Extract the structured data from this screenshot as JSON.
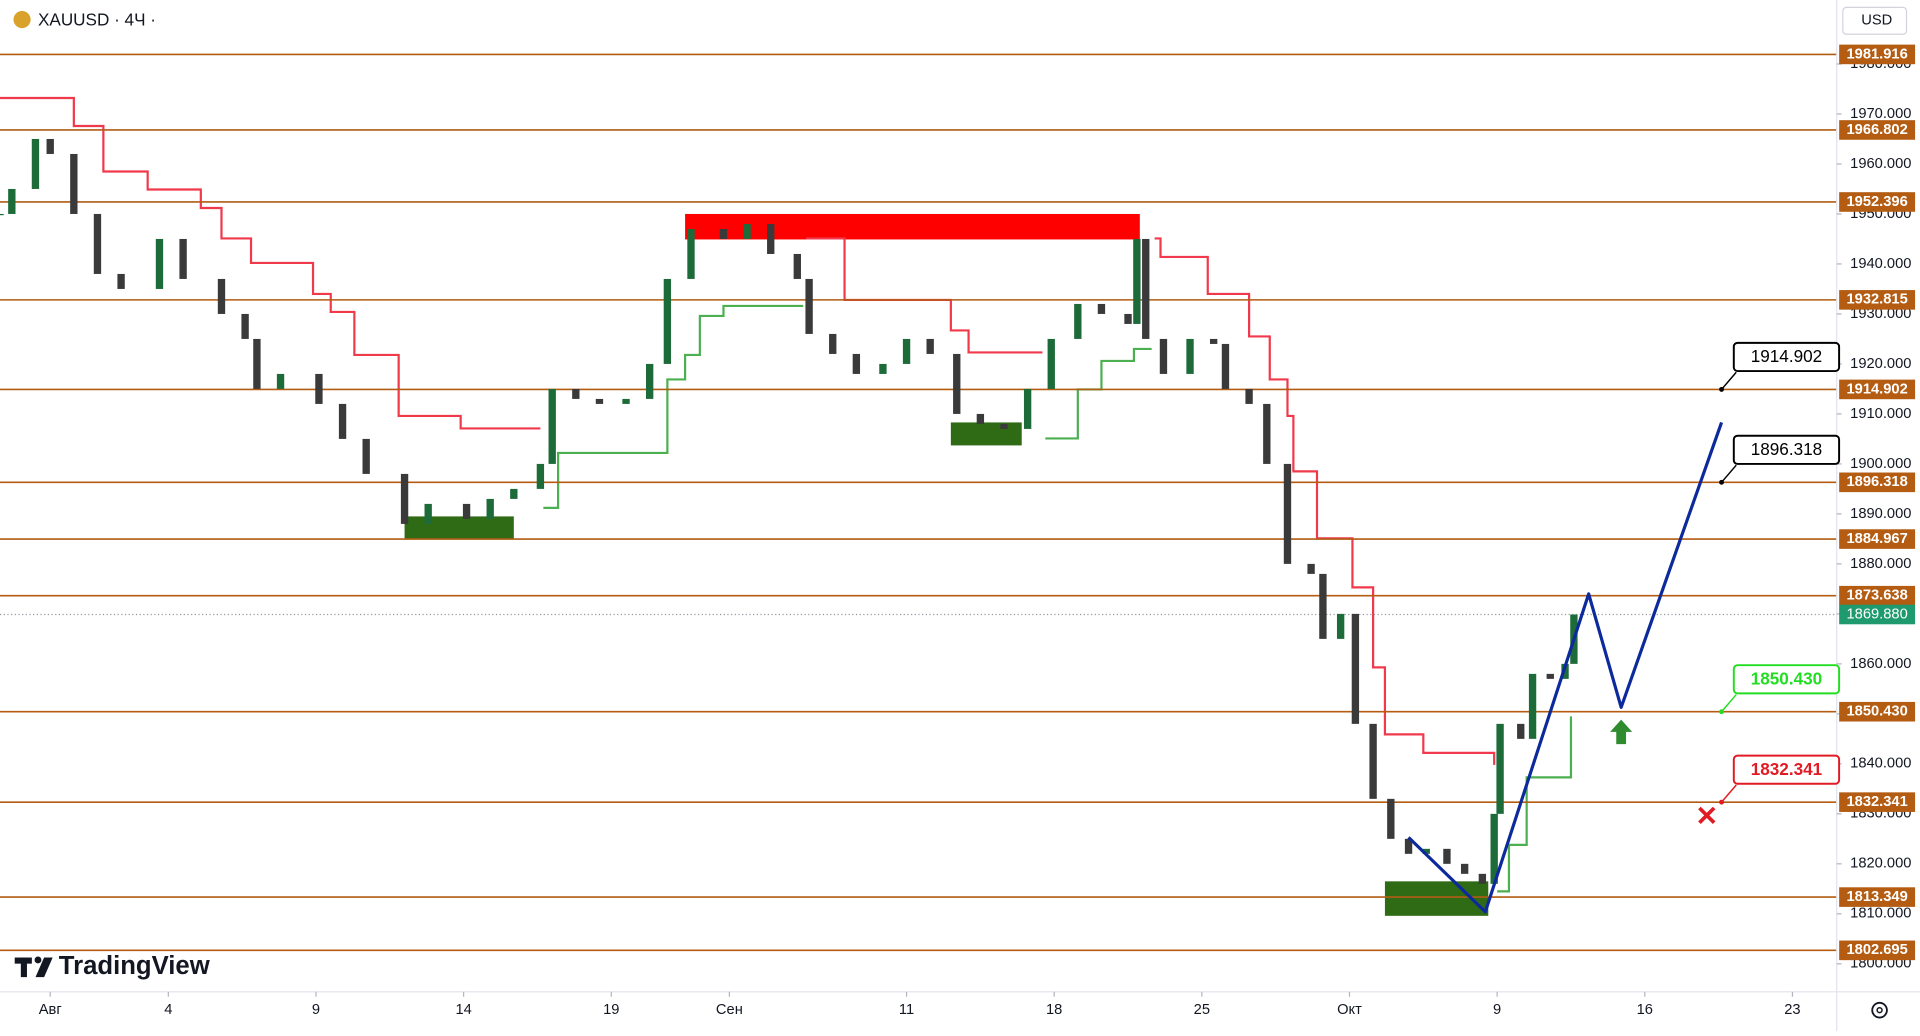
{
  "header": {
    "symbol": "XAUUSD · 4Ч ·",
    "currency": "USD",
    "brand": "TradingView"
  },
  "chart_data": {
    "type": "candlestick",
    "x": [
      -1.7,
      -1.3,
      -0.5,
      0,
      0.8,
      1.6,
      2.4,
      3.7,
      4.5,
      5.8,
      6.6,
      7,
      7.8,
      9.1,
      9.9,
      10.7,
      12,
      12.8,
      14.1,
      14.9,
      15.7,
      16.6,
      17,
      17.8,
      18.6,
      19.5,
      20.3,
      20.9,
      21.7,
      22.8,
      23.6,
      24.4,
      25.3,
      25.7,
      26.5,
      27.3,
      28.2,
      29,
      29.8,
      30.7,
      31.5,
      32.3,
      33.1,
      33.9,
      34.8,
      35.6,
      36.5,
      36.8,
      37.1,
      37.7,
      38.6,
      39.4,
      39.8,
      40.6,
      41.2,
      41.9,
      42.7,
      43.1,
      43.7,
      44.2,
      44.8,
      45.4,
      46,
      46.6,
      47.3,
      47.9,
      48.5,
      48.9,
      49.1,
      49.8,
      50.2,
      50.8,
      51.3,
      51.6
    ],
    "values": [
      1950,
      1955,
      1965,
      1962,
      1950,
      1938,
      1935,
      1945,
      1937,
      1930,
      1925,
      1915,
      1918,
      1912,
      1905,
      1898,
      1888,
      1892,
      1889,
      1893,
      1895,
      1900,
      1915,
      1913,
      1912,
      1913,
      1920,
      1937,
      1947,
      1945,
      1948,
      1942,
      1937,
      1926,
      1922,
      1918,
      1920,
      1925,
      1922,
      1910,
      1908,
      1907,
      1915,
      1925,
      1932,
      1930,
      1928,
      1945,
      1925,
      1918,
      1925,
      1924,
      1915,
      1912,
      1900,
      1880,
      1878,
      1865,
      1870,
      1848,
      1833,
      1825,
      1822,
      1823,
      1820,
      1818,
      1816,
      1830,
      1848,
      1845,
      1858,
      1857,
      1860,
      1869.88
    ],
    "up_color": "#1e6b3a",
    "down_color": "#3a3a3a",
    "xlim": [
      -1.7,
      60.5
    ],
    "xticks": [
      {
        "value": 0,
        "label": "Авг"
      },
      4,
      9,
      14,
      19,
      {
        "value": 23,
        "label": "Сен"
      },
      {
        "value": 29,
        "label": "11"
      },
      {
        "value": 34,
        "label": "18"
      },
      {
        "value": 39,
        "label": "25"
      },
      {
        "value": 44,
        "label": "Окт"
      },
      {
        "value": 49,
        "label": "9"
      },
      {
        "value": 54,
        "label": "16"
      },
      {
        "value": 59,
        "label": "23"
      }
    ],
    "ylim": [
      1794.4,
      1992.8
    ],
    "yticks": [
      {
        "value": 1800,
        "label": "1800.000"
      },
      {
        "value": 1810,
        "label": "1810.000"
      },
      {
        "value": 1820,
        "label": "1820.000"
      },
      {
        "value": 1830,
        "label": "1830.000"
      },
      {
        "value": 1840,
        "label": "1840.000"
      },
      {
        "value": 1850,
        "label": "1850.000"
      },
      {
        "value": 1860,
        "label": "1860.000"
      },
      {
        "value": 1870,
        "label": "1870.000"
      },
      {
        "value": 1880,
        "label": "1880.000"
      },
      {
        "value": 1890,
        "label": "1890.000"
      },
      {
        "value": 1900,
        "label": "1900.000"
      },
      {
        "value": 1910,
        "label": "1910.000"
      },
      {
        "value": 1920,
        "label": "1920.000"
      },
      {
        "value": 1930,
        "label": "1930.000"
      },
      {
        "value": 1940,
        "label": "1940.000"
      },
      {
        "value": 1950,
        "label": "1950.000"
      },
      {
        "value": 1960,
        "label": "1960.000"
      },
      {
        "value": 1970,
        "label": "1970.000"
      },
      {
        "value": 1980,
        "label": "1980.000"
      }
    ],
    "levels": [
      1981.916,
      1966.802,
      1952.396,
      1932.815,
      1914.902,
      1896.318,
      1884.967,
      1873.638,
      {
        "value": 1850.43,
        "label": "1850.430"
      },
      1832.341,
      1813.349,
      1802.695
    ],
    "level_color": "#b35c12",
    "current_price": {
      "value": 1869.88,
      "label": "1869.880"
    },
    "current_color": "#1f9a6f",
    "callouts": [
      {
        "price": 1914.902,
        "color": "#000000"
      },
      {
        "price": 1896.318,
        "color": "#000000"
      },
      {
        "price": {
          "value": 1850.43,
          "label": "1850.430"
        },
        "color": "#22dd22"
      },
      {
        "price": 1832.341,
        "color": "#e01b24"
      }
    ],
    "callout_x": 56.6,
    "zones": [
      {
        "x": [
          12.0,
          15.7
        ],
        "y": [
          1884.9,
          1889.5
        ],
        "color": "#2f6b15"
      },
      {
        "x": [
          30.5,
          32.9
        ],
        "y": [
          1903.7,
          1908.3
        ],
        "color": "#2f6b15"
      },
      {
        "x": [
          45.2,
          48.7
        ],
        "y": [
          1809.6,
          1816.5
        ],
        "color": "#2f6b15"
      },
      {
        "x": [
          21.5,
          36.9
        ],
        "y": [
          1944.9,
          1950.0
        ],
        "color": "#ff0000"
      }
    ],
    "supertrend": [
      {
        "color": "#f0394b",
        "x": [
          -1.7,
          0.8,
          1.8,
          3.3,
          5.1,
          5.8,
          6.8,
          8.9,
          9.5,
          10.3,
          11.8,
          13.9,
          16.6
        ],
        "values": [
          1973.2,
          1967.6,
          1958.5,
          1954.9,
          1951.2,
          1945.1,
          1940.2,
          1934.0,
          1930.4,
          1921.8,
          1909.6,
          1907.1,
          1907.1
        ]
      },
      {
        "color": "#4caf50",
        "x": [
          16.7,
          17.2,
          20.1,
          20.9,
          21.5,
          22.0,
          22.8,
          25.5
        ],
        "values": [
          1891.2,
          1902.2,
          1902.2,
          1916.9,
          1921.8,
          1929.6,
          1931.6,
          1931.6
        ]
      },
      {
        "color": "#f0394b",
        "x": [
          25.6,
          26.9,
          30.5,
          31.1,
          33.6
        ],
        "values": [
          1945.1,
          1932.8,
          1926.7,
          1922.3,
          1922.3
        ]
      },
      {
        "color": "#4caf50",
        "x": [
          33.7,
          34.8,
          35.6,
          36.7,
          37.3
        ],
        "values": [
          1905.1,
          1914.9,
          1920.6,
          1923.0,
          1923.0
        ]
      },
      {
        "color": "#f0394b",
        "x": [
          37.4,
          37.6,
          39.2,
          40.6,
          41.3,
          41.9,
          42.1,
          42.9,
          44.1,
          44.8,
          45.2,
          46.5,
          48.9
        ],
        "values": [
          1945.1,
          1941.4,
          1934.0,
          1925.5,
          1916.9,
          1909.6,
          1898.5,
          1885.1,
          1875.3,
          1859.3,
          1845.9,
          1842.2,
          1839.8
        ]
      },
      {
        "color": "#4caf50",
        "x": [
          49.0,
          49.4,
          50.0,
          51.1,
          51.5
        ],
        "values": [
          1814.5,
          1823.8,
          1837.3,
          1837.3,
          1849.5
        ]
      }
    ],
    "projection": {
      "color": "#0d2a9c",
      "x": [
        46.0,
        48.6,
        52.1,
        53.2,
        56.6
      ],
      "values": [
        1825.3,
        1810.4,
        1874.0,
        1851.3,
        1908.3
      ]
    },
    "signals": [
      {
        "kind": "buy",
        "color": "#2e8b2e",
        "x": 53.2,
        "value": 1846.4
      },
      {
        "kind": "stop",
        "color": "#e01b24",
        "x": 56.1,
        "value": 1829.7
      }
    ]
  }
}
